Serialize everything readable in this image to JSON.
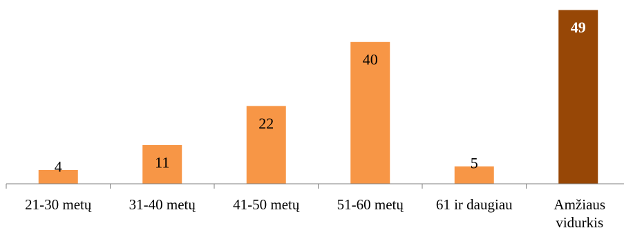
{
  "chart_data": {
    "type": "bar",
    "title": "",
    "xlabel": "",
    "ylabel": "",
    "categories": [
      "21-30 metų",
      "31-40 metų",
      "41-50 metų",
      "51-60 metų",
      "61 ir daugiau",
      "Amžiaus vidurkis"
    ],
    "values": [
      4,
      11,
      22,
      40,
      5,
      49
    ],
    "ylim": [
      0,
      49
    ],
    "grid": false,
    "legend": "none",
    "colors": {
      "bar": "#F79646",
      "highlight_bar": "#974706",
      "axis": "#7F7F7F",
      "label_dark": "#000000",
      "label_light": "#FFFFFF"
    },
    "highlight_index": 5
  }
}
